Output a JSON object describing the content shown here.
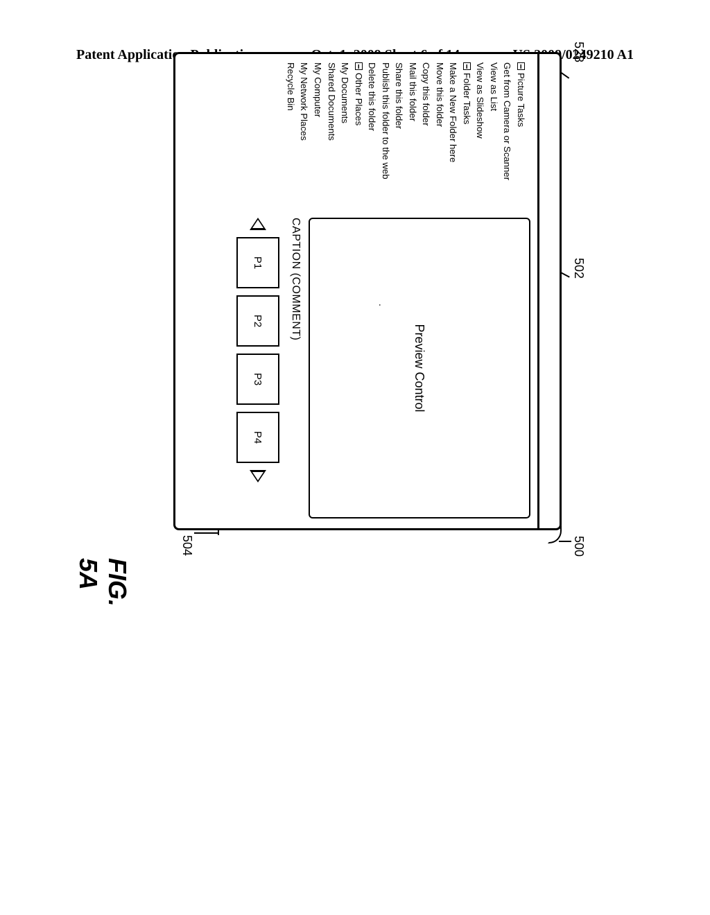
{
  "header": {
    "left": "Patent Application Publication",
    "center": "Oct. 1, 2009  Sheet 6 of 14",
    "right": "US 2009/0249210 A1"
  },
  "callouts": {
    "c528": "528",
    "c502": "502",
    "c500": "500",
    "c504": "504"
  },
  "figlabel": "FIG. 5A",
  "sidebar": {
    "group1_header": "Picture Tasks",
    "items1": [
      "Get from Camera or Scanner",
      "View as List",
      "View as Slideshow"
    ],
    "group2_header": "Folder Tasks",
    "items2": [
      "Make a New Folder here",
      "Move this folder",
      "Copy this folder",
      "Mail this folder",
      "Share this folder",
      "Publish this folder to the web",
      "Delete this folder"
    ],
    "group3_header": "Other Places",
    "items3": [
      "My Documents",
      "Shared Documents",
      "My Computer",
      "My Network Places",
      "Recycle Bin"
    ]
  },
  "main": {
    "preview_label": "Preview Control",
    "caption": "CAPTION (COMMENT)",
    "thumbs": [
      "P1",
      "P2",
      "P3",
      "P4"
    ]
  },
  "style": {
    "page_bg": "#ffffff",
    "line_color": "#000000",
    "header_fontsize_pt": 15,
    "body_fontsize_pt": 10,
    "figlabel_fontsize_pt": 27
  }
}
